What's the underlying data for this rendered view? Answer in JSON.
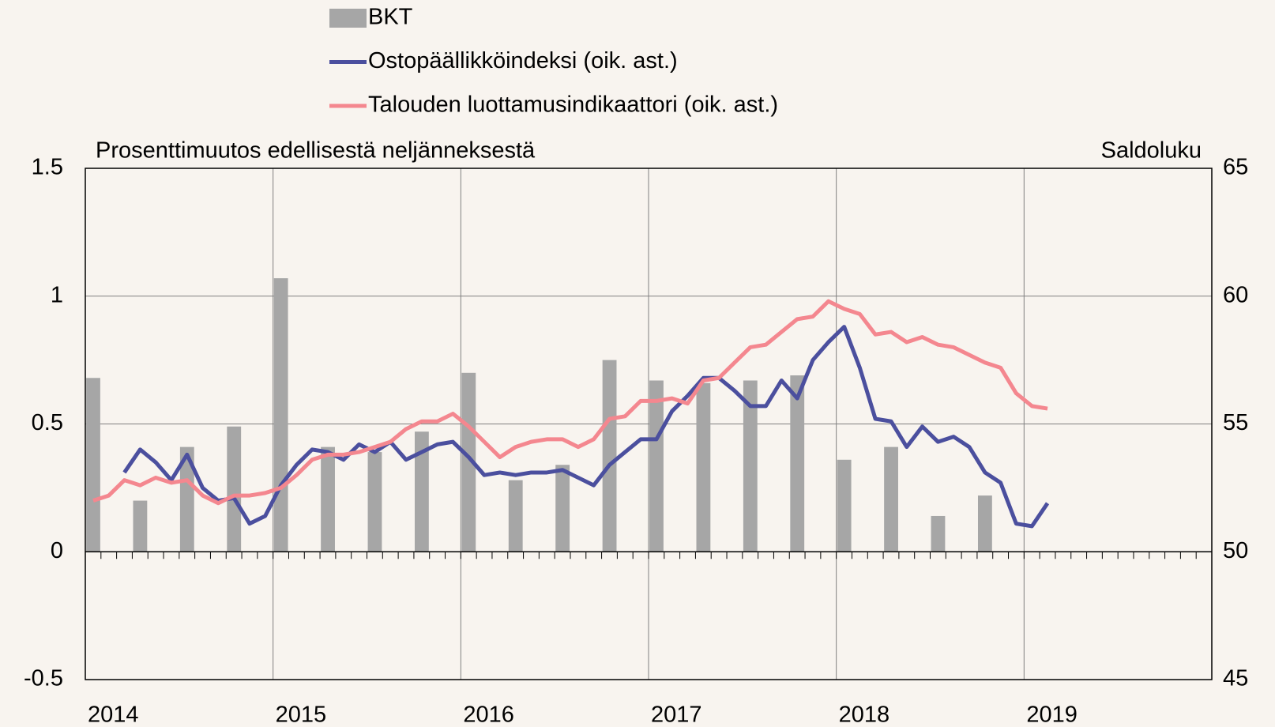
{
  "chart_data": {
    "type": "combo",
    "y_label": "Prosenttimuutos edellisestä neljänneksestä",
    "y2_label": "Saldoluku",
    "xlim": [
      2014,
      2020
    ],
    "xticks": [
      2014,
      2015,
      2016,
      2017,
      2018,
      2019
    ],
    "minor_ticks_per_year": 12,
    "ylim": [
      -0.5,
      1.5
    ],
    "yticks": [
      -0.5,
      0,
      0.5,
      1,
      1.5
    ],
    "y2lim": [
      45,
      65
    ],
    "y2ticks": [
      45,
      50,
      55,
      60,
      65
    ],
    "grid": true,
    "legend": "top",
    "series": [
      {
        "name": "BKT",
        "type": "bar",
        "color": "#a6a6a6",
        "x": [
          2014.042,
          2014.292,
          2014.542,
          2014.792,
          2015.042,
          2015.292,
          2015.542,
          2015.792,
          2016.042,
          2016.292,
          2016.542,
          2016.792,
          2017.042,
          2017.292,
          2017.542,
          2017.792,
          2018.042,
          2018.292,
          2018.542,
          2018.792
        ],
        "values": [
          0.68,
          0.2,
          0.41,
          0.49,
          1.07,
          0.41,
          0.39,
          0.47,
          0.7,
          0.28,
          0.34,
          0.75,
          0.67,
          0.66,
          0.67,
          0.69,
          0.36,
          0.41,
          0.14,
          0.22
        ]
      },
      {
        "name": "Ostopäällikköindeksi (oik. ast.)",
        "type": "line",
        "axis": "y2",
        "color": "#4b4f9e",
        "x": [
          2014.208,
          2014.292,
          2014.375,
          2014.458,
          2014.542,
          2014.625,
          2014.708,
          2014.792,
          2014.875,
          2014.958,
          2015.042,
          2015.125,
          2015.208,
          2015.292,
          2015.375,
          2015.458,
          2015.542,
          2015.625,
          2015.708,
          2015.792,
          2015.875,
          2015.958,
          2016.042,
          2016.125,
          2016.208,
          2016.292,
          2016.375,
          2016.458,
          2016.542,
          2016.625,
          2016.708,
          2016.792,
          2016.875,
          2016.958,
          2017.042,
          2017.125,
          2017.208,
          2017.292,
          2017.375,
          2017.458,
          2017.542,
          2017.625,
          2017.708,
          2017.792,
          2017.875,
          2017.958,
          2018.042,
          2018.125,
          2018.208,
          2018.292,
          2018.375,
          2018.458,
          2018.542,
          2018.625,
          2018.708,
          2018.792,
          2018.875,
          2018.958,
          2019.042,
          2019.125
        ],
        "values": [
          53.1,
          54.0,
          53.5,
          52.8,
          53.8,
          52.5,
          52.0,
          52.1,
          51.1,
          51.4,
          52.6,
          53.4,
          54.0,
          53.9,
          53.6,
          54.2,
          53.9,
          54.3,
          53.6,
          53.9,
          54.2,
          54.3,
          53.7,
          53.0,
          53.1,
          53.0,
          53.1,
          53.1,
          53.2,
          52.9,
          52.6,
          53.4,
          53.9,
          54.4,
          54.4,
          55.5,
          56.1,
          56.8,
          56.8,
          56.3,
          55.7,
          55.7,
          56.7,
          56.0,
          57.5,
          58.2,
          58.8,
          57.2,
          55.2,
          55.1,
          54.1,
          54.9,
          54.3,
          54.5,
          54.1,
          53.1,
          52.7,
          51.1,
          51.0,
          51.9
        ]
      },
      {
        "name": "Talouden luottamusindikaattori (oik. ast.)",
        "type": "line",
        "axis": "y2",
        "color": "#f4878f",
        "x": [
          2014.042,
          2014.125,
          2014.208,
          2014.292,
          2014.375,
          2014.458,
          2014.542,
          2014.625,
          2014.708,
          2014.792,
          2014.875,
          2014.958,
          2015.042,
          2015.125,
          2015.208,
          2015.292,
          2015.375,
          2015.458,
          2015.542,
          2015.625,
          2015.708,
          2015.792,
          2015.875,
          2015.958,
          2016.042,
          2016.125,
          2016.208,
          2016.292,
          2016.375,
          2016.458,
          2016.542,
          2016.625,
          2016.708,
          2016.792,
          2016.875,
          2016.958,
          2017.042,
          2017.125,
          2017.208,
          2017.292,
          2017.375,
          2017.458,
          2017.542,
          2017.625,
          2017.708,
          2017.792,
          2017.875,
          2017.958,
          2018.042,
          2018.125,
          2018.208,
          2018.292,
          2018.375,
          2018.458,
          2018.542,
          2018.625,
          2018.708,
          2018.792,
          2018.875,
          2018.958,
          2019.042,
          2019.125
        ],
        "values": [
          52.0,
          52.2,
          52.8,
          52.6,
          52.9,
          52.7,
          52.8,
          52.2,
          51.9,
          52.2,
          52.2,
          52.3,
          52.5,
          53.0,
          53.6,
          53.8,
          53.8,
          53.9,
          54.1,
          54.3,
          54.8,
          55.1,
          55.1,
          55.4,
          54.9,
          54.3,
          53.7,
          54.1,
          54.3,
          54.4,
          54.4,
          54.1,
          54.4,
          55.2,
          55.3,
          55.9,
          55.9,
          56.0,
          55.8,
          56.7,
          56.8,
          57.4,
          58.0,
          58.1,
          58.6,
          59.1,
          59.2,
          59.8,
          59.5,
          59.3,
          58.5,
          58.6,
          58.2,
          58.4,
          58.1,
          58.0,
          57.7,
          57.4,
          57.2,
          56.2,
          55.7,
          55.6
        ]
      }
    ]
  }
}
